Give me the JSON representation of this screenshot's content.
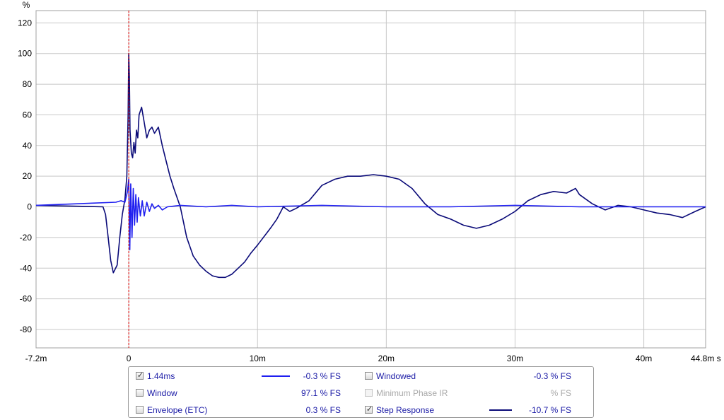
{
  "chart_data": {
    "type": "line",
    "ylabel": "%",
    "xlim": [
      -7.2,
      44.8
    ],
    "ylim": [
      -92,
      128
    ],
    "yticks": [
      120,
      100,
      80,
      60,
      40,
      20,
      0,
      -20,
      -40,
      -60,
      -80
    ],
    "xticks": [
      {
        "v": -7.2,
        "label": "-7.2m"
      },
      {
        "v": 0,
        "label": "0"
      },
      {
        "v": 10,
        "label": "10m"
      },
      {
        "v": 20,
        "label": "20m"
      },
      {
        "v": 30,
        "label": "30m"
      },
      {
        "v": 40,
        "label": "40m"
      },
      {
        "v": 44.8,
        "label": "44.8m s"
      }
    ],
    "cursor_x": 0,
    "grid": true,
    "series": [
      {
        "name": "Step Response",
        "color": "#0a0a78",
        "x": [
          -7.2,
          -2.0,
          -1.8,
          -1.6,
          -1.4,
          -1.2,
          -0.9,
          -0.7,
          -0.5,
          -0.3,
          -0.15,
          -0.05,
          0,
          0.05,
          0.1,
          0.2,
          0.3,
          0.4,
          0.5,
          0.6,
          0.7,
          0.8,
          1.0,
          1.2,
          1.4,
          1.6,
          1.8,
          2.0,
          2.3,
          2.6,
          2.9,
          3.2,
          3.5,
          4.0,
          4.5,
          5.0,
          5.5,
          6.0,
          6.5,
          7.0,
          7.5,
          8.0,
          8.5,
          9.0,
          9.5,
          10,
          11,
          11.5,
          12,
          12.5,
          13,
          14,
          15,
          16,
          17,
          18,
          19,
          20,
          21,
          22,
          23,
          24,
          25,
          26,
          27,
          28,
          29,
          30,
          31,
          32,
          33,
          34,
          34.7,
          35,
          36,
          37,
          38,
          39,
          40,
          41,
          42,
          43,
          44,
          44.8
        ],
        "y": [
          1,
          0,
          -5,
          -20,
          -35,
          -43,
          -38,
          -20,
          -5,
          5,
          20,
          60,
          100,
          85,
          50,
          35,
          32,
          42,
          35,
          50,
          45,
          60,
          65,
          55,
          45,
          50,
          52,
          48,
          52,
          40,
          30,
          20,
          12,
          0,
          -20,
          -32,
          -38,
          -42,
          -45,
          -46,
          -46,
          -44,
          -40,
          -36,
          -30,
          -25,
          -14,
          -8,
          0,
          -3,
          -1,
          4,
          14,
          18,
          20,
          20,
          21,
          20,
          18,
          12,
          2,
          -5,
          -8,
          -12,
          -14,
          -12,
          -8,
          -3,
          4,
          8,
          10,
          9,
          12,
          8,
          2,
          -2,
          1,
          0,
          -2,
          -4,
          -5,
          -7,
          -3,
          0
        ]
      },
      {
        "name": "1.44ms",
        "color": "#1f1ff0",
        "x": [
          -7.2,
          -1.0,
          -0.6,
          -0.3,
          -0.1,
          0,
          0.08,
          0.15,
          0.25,
          0.35,
          0.45,
          0.55,
          0.65,
          0.75,
          0.9,
          1.05,
          1.2,
          1.4,
          1.6,
          1.8,
          2.0,
          2.3,
          2.6,
          3.0,
          4,
          6,
          8,
          10,
          15,
          20,
          25,
          30,
          35,
          40,
          44.8
        ],
        "y": [
          1,
          3,
          4,
          3,
          10,
          18,
          -28,
          15,
          -20,
          12,
          -12,
          8,
          -10,
          6,
          -6,
          4,
          -6,
          3,
          -3,
          2,
          -1,
          1,
          -2,
          0,
          1,
          0,
          1,
          0,
          1,
          0,
          0,
          1,
          0,
          0,
          0
        ]
      }
    ]
  },
  "legend": {
    "items": [
      {
        "label": "1.44ms",
        "checked": "✓",
        "value": "-0.3 % FS",
        "swatch_color": "#1f1ff0"
      },
      {
        "label": "Window",
        "checked": "",
        "value": "97.1 % FS"
      },
      {
        "label": "Envelope (ETC)",
        "checked": "",
        "value": "0.3 % FS"
      },
      {
        "label": "Windowed",
        "checked": "",
        "value": "-0.3 % FS"
      },
      {
        "label": "Minimum Phase IR",
        "checked": "",
        "value": "% FS"
      },
      {
        "label": "Step Response",
        "checked": "✓",
        "value": "-10.7 % FS",
        "swatch_color": "#0a0a78"
      }
    ]
  }
}
